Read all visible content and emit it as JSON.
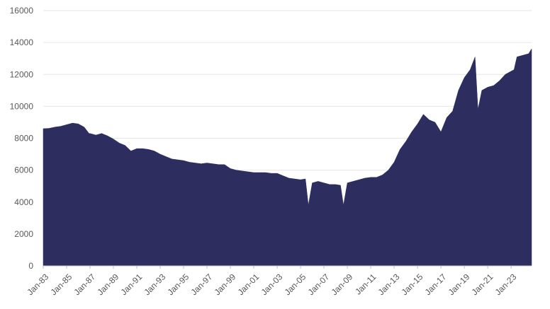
{
  "chart_data": {
    "type": "area",
    "title": "",
    "xlabel": "",
    "ylabel": "",
    "ylim": [
      0,
      16000
    ],
    "yticks": [
      0,
      2000,
      4000,
      6000,
      8000,
      10000,
      12000,
      14000,
      16000
    ],
    "xlim": [
      "1983-01",
      "2024-10"
    ],
    "xticks": [
      "Jan-83",
      "Jan-85",
      "Jan-87",
      "Jan-89",
      "Jan-91",
      "Jan-93",
      "Jan-95",
      "Jan-97",
      "Jan-99",
      "Jan-01",
      "Jan-03",
      "Jan-05",
      "Jan-07",
      "Jan-09",
      "Jan-11",
      "Jan-13",
      "Jan-15",
      "Jan-17",
      "Jan-19",
      "Jan-21",
      "Jan-23"
    ],
    "grid": true,
    "legend": "none",
    "fill_color": "#2d2d5f",
    "series": [
      {
        "x": [
          "1983-01",
          "1983-07",
          "1984-01",
          "1984-07",
          "1985-01",
          "1985-07",
          "1986-01",
          "1986-07",
          "1986-12",
          "1987-01",
          "1987-07",
          "1988-01",
          "1988-07",
          "1989-01",
          "1989-07",
          "1990-01",
          "1990-07",
          "1991-01",
          "1991-07",
          "1992-01",
          "1992-07",
          "1993-01",
          "1993-07",
          "1994-01",
          "1994-07",
          "1995-01",
          "1995-07",
          "1996-01",
          "1996-07",
          "1997-01",
          "1997-07",
          "1998-01",
          "1998-07",
          "1999-01",
          "1999-07",
          "2000-01",
          "2000-07",
          "2001-01",
          "2001-07",
          "2002-01",
          "2002-07",
          "2003-01",
          "2003-07",
          "2004-01",
          "2004-07",
          "2005-01",
          "2005-06",
          "2005-09",
          "2006-01",
          "2006-07",
          "2007-01",
          "2007-07",
          "2008-01",
          "2008-06",
          "2008-09",
          "2009-01",
          "2009-07",
          "2010-01",
          "2010-07",
          "2011-01",
          "2011-07",
          "2012-01",
          "2012-07",
          "2013-01",
          "2013-07",
          "2014-01",
          "2014-07",
          "2015-01",
          "2015-07",
          "2016-01",
          "2016-07",
          "2017-01",
          "2017-07",
          "2018-01",
          "2018-07",
          "2019-01",
          "2019-07",
          "2019-12",
          "2020-03",
          "2020-07",
          "2021-01",
          "2021-07",
          "2022-01",
          "2022-07",
          "2023-01",
          "2023-04",
          "2023-07",
          "2024-01",
          "2024-07",
          "2024-10"
        ],
        "values": [
          8600,
          8620,
          8700,
          8750,
          8850,
          8950,
          8900,
          8700,
          8300,
          8300,
          8200,
          8300,
          8150,
          7950,
          7700,
          7550,
          7200,
          7350,
          7350,
          7300,
          7200,
          7000,
          6850,
          6700,
          6650,
          6600,
          6500,
          6450,
          6400,
          6450,
          6400,
          6350,
          6350,
          6100,
          6000,
          5950,
          5900,
          5850,
          5850,
          5850,
          5800,
          5800,
          5650,
          5500,
          5450,
          5400,
          5450,
          3800,
          5200,
          5300,
          5200,
          5100,
          5100,
          5050,
          3800,
          5200,
          5300,
          5400,
          5500,
          5550,
          5550,
          5700,
          6000,
          6500,
          7300,
          7800,
          8400,
          8900,
          9500,
          9150,
          9000,
          8400,
          9300,
          9700,
          11000,
          11800,
          12300,
          13100,
          9800,
          11000,
          11200,
          11300,
          11600,
          12000,
          12200,
          12300,
          13100,
          13200,
          13300,
          13600
        ]
      }
    ]
  }
}
